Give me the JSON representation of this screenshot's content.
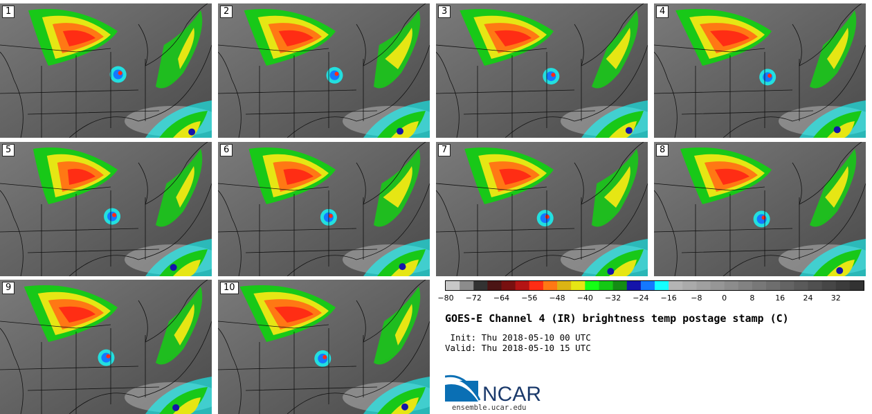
{
  "panels": [
    {
      "label": "1"
    },
    {
      "label": "2"
    },
    {
      "label": "3"
    },
    {
      "label": "4"
    },
    {
      "label": "5"
    },
    {
      "label": "6"
    },
    {
      "label": "7"
    },
    {
      "label": "8"
    },
    {
      "label": "9"
    },
    {
      "label": "10"
    }
  ],
  "colorbar": {
    "colors": [
      "#c8c8c8",
      "#8c8c8c",
      "#323232",
      "#4b1414",
      "#781010",
      "#b41414",
      "#ff2d14",
      "#ff7814",
      "#dcb414",
      "#e6e614",
      "#14ff14",
      "#14c814",
      "#148c14",
      "#1414aa",
      "#1478ff",
      "#14ffff",
      "#b4b4b4",
      "#aaaaaa",
      "#a0a0a0",
      "#969696",
      "#8c8c8c",
      "#828282",
      "#787878",
      "#6e6e6e",
      "#646464",
      "#5a5a5a",
      "#505050",
      "#464646",
      "#3c3c3c",
      "#323232"
    ],
    "tick_labels": [
      "−80",
      "−72",
      "−64",
      "−56",
      "−48",
      "−40",
      "−32",
      "−24",
      "−16",
      "−8",
      "0",
      "8",
      "16",
      "24",
      "32"
    ]
  },
  "title": "GOES-E Channel 4 (IR) brightness temp postage stamp (C)",
  "init": " Init: Thu 2018-05-10 00 UTC",
  "valid": "Valid: Thu 2018-05-10 15 UTC",
  "logo_text": "NCAR",
  "url": "ensemble.ucar.edu"
}
